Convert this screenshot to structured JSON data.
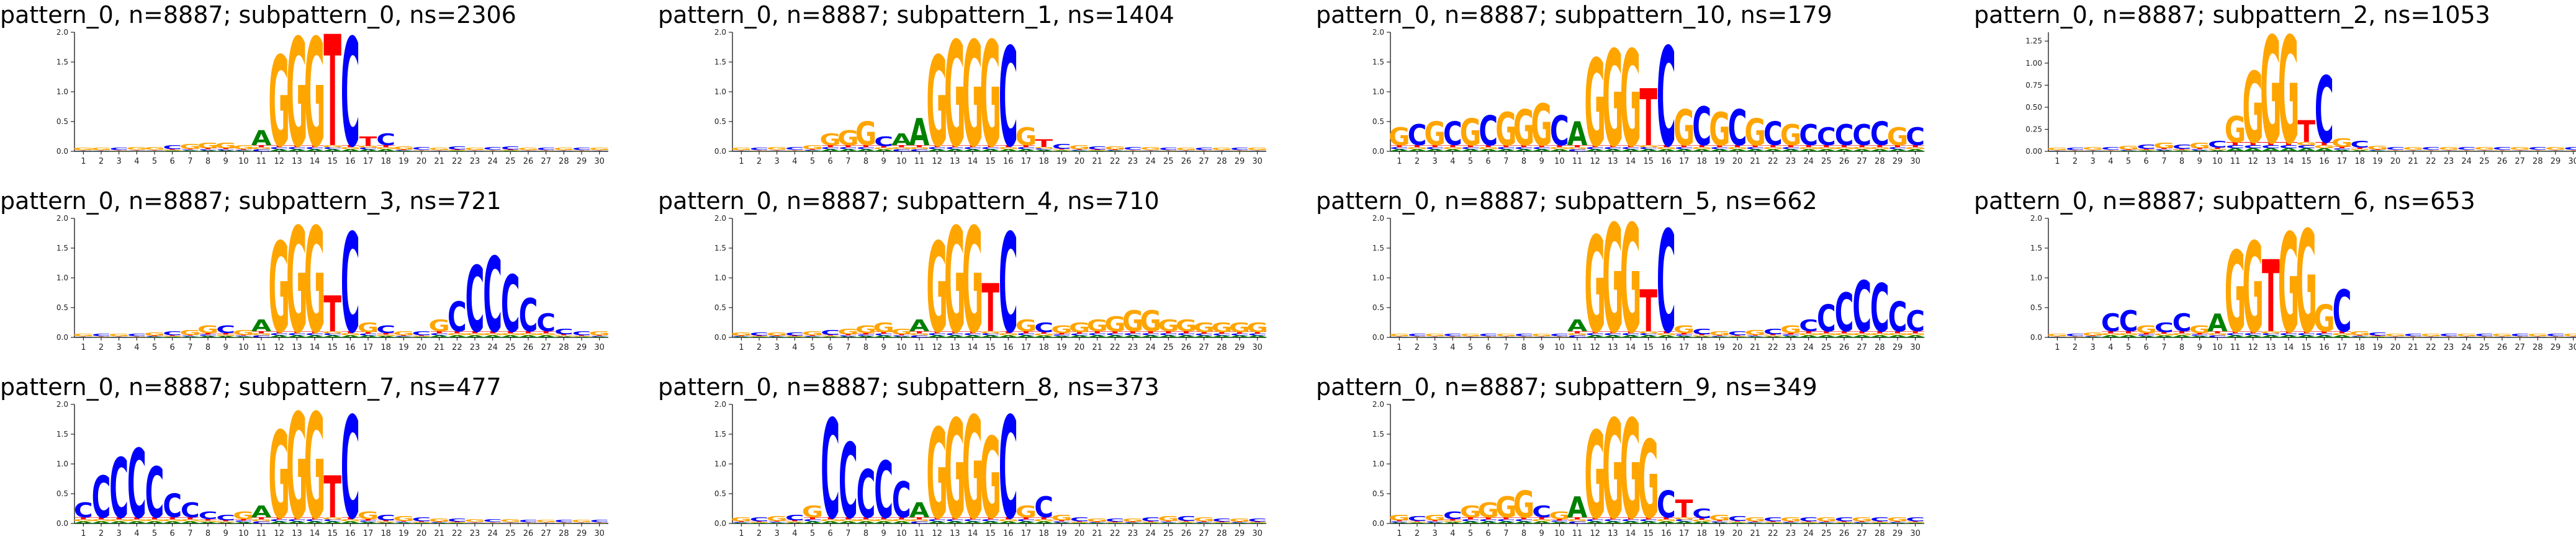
{
  "colors": {
    "A": "#008000",
    "C": "#0000ff",
    "G": "#ffa500",
    "T": "#ff0000"
  },
  "chart_data": [
    {
      "type": "logo",
      "title": "pattern_0, n=8887; subpattern_0, ns=2306",
      "yticks": [
        "0.0",
        "0.5",
        "1.0",
        "1.5",
        "2.0"
      ],
      "ylim": [
        0,
        2.0
      ],
      "x": [
        "1",
        "2",
        "3",
        "4",
        "5",
        "6",
        "7",
        "8",
        "9",
        "10",
        "11",
        "12",
        "13",
        "14",
        "15",
        "16",
        "17",
        "18",
        "19",
        "20",
        "21",
        "22",
        "23",
        "24",
        "25",
        "26",
        "27",
        "28",
        "29",
        "30"
      ],
      "heights": [
        0.06,
        0.06,
        0.06,
        0.07,
        0.07,
        0.1,
        0.12,
        0.15,
        0.15,
        0.1,
        0.35,
        1.6,
        1.9,
        1.9,
        1.95,
        1.9,
        0.25,
        0.3,
        0.08,
        0.07,
        0.06,
        0.08,
        0.06,
        0.07,
        0.08,
        0.06,
        0.06,
        0.06,
        0.06,
        0.06
      ],
      "dominant": [
        "G",
        "G",
        "C",
        "G",
        "G",
        "C",
        "G",
        "G",
        "G",
        "G",
        "A",
        "G",
        "G",
        "G",
        "T",
        "C",
        "T",
        "C",
        "G",
        "C",
        "G",
        "C",
        "G",
        "C",
        "C",
        "G",
        "C",
        "G",
        "C",
        "G"
      ]
    },
    {
      "type": "logo",
      "title": "pattern_0, n=8887; subpattern_1, ns=1404",
      "yticks": [
        "0.0",
        "0.5",
        "1.0",
        "1.5",
        "2.0"
      ],
      "ylim": [
        0,
        2.0
      ],
      "x": [
        "1",
        "2",
        "3",
        "4",
        "5",
        "6",
        "7",
        "8",
        "9",
        "10",
        "11",
        "12",
        "13",
        "14",
        "15",
        "16",
        "17",
        "18",
        "19",
        "20",
        "21",
        "22",
        "23",
        "24",
        "25",
        "26",
        "27",
        "28",
        "29",
        "30"
      ],
      "heights": [
        0.06,
        0.06,
        0.07,
        0.07,
        0.1,
        0.3,
        0.35,
        0.5,
        0.25,
        0.3,
        0.55,
        1.6,
        1.85,
        1.85,
        1.85,
        1.75,
        0.4,
        0.2,
        0.12,
        0.1,
        0.08,
        0.08,
        0.07,
        0.07,
        0.06,
        0.06,
        0.06,
        0.06,
        0.06,
        0.06
      ],
      "dominant": [
        "G",
        "C",
        "G",
        "C",
        "G",
        "G",
        "G",
        "G",
        "C",
        "A",
        "A",
        "G",
        "G",
        "G",
        "G",
        "C",
        "G",
        "T",
        "C",
        "G",
        "C",
        "G",
        "C",
        "G",
        "C",
        "G",
        "C",
        "G",
        "C",
        "G"
      ]
    },
    {
      "type": "logo",
      "title": "pattern_0, n=8887; subpattern_10, ns=179",
      "yticks": [
        "0.0",
        "0.5",
        "1.0",
        "1.5",
        "2.0"
      ],
      "ylim": [
        0,
        2.0
      ],
      "x": [
        "1",
        "2",
        "3",
        "4",
        "5",
        "6",
        "7",
        "8",
        "9",
        "10",
        "11",
        "12",
        "13",
        "14",
        "15",
        "16",
        "17",
        "18",
        "19",
        "20",
        "21",
        "22",
        "23",
        "24",
        "25",
        "26",
        "27",
        "28",
        "29",
        "30"
      ],
      "heights": [
        0.4,
        0.45,
        0.5,
        0.5,
        0.55,
        0.6,
        0.65,
        0.7,
        0.8,
        0.6,
        0.5,
        1.55,
        1.7,
        1.7,
        1.05,
        1.75,
        0.7,
        0.75,
        0.65,
        0.7,
        0.55,
        0.5,
        0.45,
        0.45,
        0.4,
        0.45,
        0.45,
        0.5,
        0.4,
        0.4
      ],
      "dominant": [
        "G",
        "C",
        "G",
        "C",
        "G",
        "C",
        "G",
        "G",
        "G",
        "C",
        "A",
        "G",
        "G",
        "G",
        "T",
        "C",
        "G",
        "C",
        "G",
        "C",
        "G",
        "C",
        "G",
        "C",
        "C",
        "C",
        "C",
        "C",
        "G",
        "C"
      ]
    },
    {
      "type": "logo",
      "title": "pattern_0, n=8887; subpattern_2, ns=1053",
      "yticks": [
        "0.00",
        "0.25",
        "0.50",
        "0.75",
        "1.00",
        "1.25"
      ],
      "ylim": [
        0,
        1.35
      ],
      "x": [
        "1",
        "2",
        "3",
        "4",
        "5",
        "6",
        "7",
        "8",
        "9",
        "10",
        "11",
        "12",
        "13",
        "14",
        "15",
        "16",
        "17",
        "18",
        "19",
        "20",
        "21",
        "22",
        "23",
        "24",
        "25",
        "26",
        "27",
        "28",
        "29",
        "30"
      ],
      "heights": [
        0.04,
        0.04,
        0.05,
        0.05,
        0.06,
        0.08,
        0.1,
        0.08,
        0.1,
        0.12,
        0.4,
        0.9,
        1.3,
        1.3,
        0.35,
        0.85,
        0.15,
        0.12,
        0.06,
        0.05,
        0.05,
        0.05,
        0.05,
        0.05,
        0.05,
        0.05,
        0.05,
        0.05,
        0.05,
        0.05
      ],
      "dominant": [
        "G",
        "C",
        "G",
        "C",
        "G",
        "C",
        "G",
        "C",
        "G",
        "C",
        "G",
        "G",
        "G",
        "G",
        "T",
        "C",
        "G",
        "C",
        "G",
        "C",
        "G",
        "C",
        "G",
        "C",
        "G",
        "C",
        "G",
        "C",
        "G",
        "C"
      ]
    },
    {
      "type": "logo",
      "title": "pattern_0, n=8887; subpattern_3, ns=721",
      "yticks": [
        "0.0",
        "0.5",
        "1.0",
        "1.5",
        "2.0"
      ],
      "ylim": [
        0,
        2.0
      ],
      "x": [
        "1",
        "2",
        "3",
        "4",
        "5",
        "6",
        "7",
        "8",
        "9",
        "10",
        "11",
        "12",
        "13",
        "14",
        "15",
        "16",
        "17",
        "18",
        "19",
        "20",
        "21",
        "22",
        "23",
        "24",
        "25",
        "26",
        "27",
        "28",
        "29",
        "30"
      ],
      "heights": [
        0.06,
        0.06,
        0.06,
        0.06,
        0.08,
        0.1,
        0.12,
        0.2,
        0.2,
        0.12,
        0.3,
        1.6,
        1.85,
        1.85,
        0.7,
        1.75,
        0.25,
        0.2,
        0.1,
        0.1,
        0.3,
        0.6,
        1.2,
        1.35,
        1.05,
        0.65,
        0.4,
        0.15,
        0.1,
        0.1
      ],
      "dominant": [
        "G",
        "C",
        "G",
        "C",
        "G",
        "C",
        "G",
        "G",
        "C",
        "G",
        "A",
        "G",
        "G",
        "G",
        "T",
        "C",
        "G",
        "C",
        "G",
        "C",
        "G",
        "C",
        "C",
        "C",
        "C",
        "C",
        "C",
        "C",
        "C",
        "G"
      ]
    },
    {
      "type": "logo",
      "title": "pattern_0, n=8887; subpattern_4, ns=710",
      "yticks": [
        "0.0",
        "0.5",
        "1.0",
        "1.5",
        "2.0"
      ],
      "ylim": [
        0,
        2.0
      ],
      "x": [
        "1",
        "2",
        "3",
        "4",
        "5",
        "6",
        "7",
        "8",
        "9",
        "10",
        "11",
        "12",
        "13",
        "14",
        "15",
        "16",
        "17",
        "18",
        "19",
        "20",
        "21",
        "22",
        "23",
        "24",
        "25",
        "26",
        "27",
        "28",
        "29",
        "30"
      ],
      "heights": [
        0.08,
        0.08,
        0.08,
        0.08,
        0.1,
        0.12,
        0.15,
        0.2,
        0.25,
        0.15,
        0.3,
        1.6,
        1.85,
        1.85,
        0.9,
        1.75,
        0.3,
        0.25,
        0.2,
        0.25,
        0.3,
        0.35,
        0.45,
        0.45,
        0.3,
        0.3,
        0.25,
        0.25,
        0.25,
        0.25
      ],
      "dominant": [
        "G",
        "C",
        "G",
        "C",
        "G",
        "C",
        "G",
        "G",
        "G",
        "G",
        "A",
        "G",
        "G",
        "G",
        "T",
        "C",
        "G",
        "C",
        "G",
        "G",
        "G",
        "G",
        "G",
        "G",
        "G",
        "G",
        "G",
        "G",
        "G",
        "G"
      ]
    },
    {
      "type": "logo",
      "title": "pattern_0, n=8887; subpattern_5, ns=662",
      "yticks": [
        "0.0",
        "0.5",
        "1.0",
        "1.5",
        "2.0"
      ],
      "ylim": [
        0,
        2.0
      ],
      "x": [
        "1",
        "2",
        "3",
        "4",
        "5",
        "6",
        "7",
        "8",
        "9",
        "10",
        "11",
        "12",
        "13",
        "14",
        "15",
        "16",
        "17",
        "18",
        "19",
        "20",
        "21",
        "22",
        "23",
        "24",
        "25",
        "26",
        "27",
        "28",
        "29",
        "30"
      ],
      "heights": [
        0.06,
        0.06,
        0.06,
        0.06,
        0.06,
        0.06,
        0.06,
        0.06,
        0.06,
        0.06,
        0.3,
        1.7,
        1.9,
        1.9,
        0.8,
        1.8,
        0.2,
        0.15,
        0.1,
        0.1,
        0.12,
        0.15,
        0.2,
        0.3,
        0.55,
        0.75,
        0.95,
        0.9,
        0.6,
        0.45
      ],
      "dominant": [
        "G",
        "C",
        "G",
        "C",
        "G",
        "C",
        "G",
        "C",
        "G",
        "C",
        "A",
        "G",
        "G",
        "G",
        "T",
        "C",
        "G",
        "C",
        "G",
        "C",
        "G",
        "C",
        "G",
        "C",
        "C",
        "C",
        "C",
        "C",
        "C",
        "C"
      ]
    },
    {
      "type": "logo",
      "title": "pattern_0, n=8887; subpattern_6, ns=653",
      "yticks": [
        "0.0",
        "0.5",
        "1.0",
        "1.5",
        "2.0"
      ],
      "ylim": [
        0,
        2.0
      ],
      "x": [
        "1",
        "2",
        "3",
        "4",
        "5",
        "6",
        "7",
        "8",
        "9",
        "10",
        "11",
        "12",
        "13",
        "14",
        "15",
        "16",
        "17",
        "18",
        "19",
        "20",
        "21",
        "22",
        "23",
        "24",
        "25",
        "26",
        "27",
        "28",
        "29",
        "30"
      ],
      "heights": [
        0.06,
        0.06,
        0.08,
        0.4,
        0.45,
        0.2,
        0.25,
        0.4,
        0.2,
        0.4,
        1.45,
        1.6,
        1.3,
        1.75,
        1.8,
        0.55,
        0.8,
        0.1,
        0.08,
        0.06,
        0.06,
        0.06,
        0.06,
        0.06,
        0.06,
        0.06,
        0.06,
        0.06,
        0.06,
        0.06
      ],
      "dominant": [
        "G",
        "C",
        "G",
        "C",
        "C",
        "G",
        "C",
        "C",
        "G",
        "A",
        "G",
        "G",
        "T",
        "G",
        "G",
        "G",
        "C",
        "G",
        "C",
        "G",
        "C",
        "G",
        "C",
        "G",
        "C",
        "G",
        "C",
        "G",
        "C",
        "G"
      ]
    },
    {
      "type": "logo",
      "title": "pattern_0, n=8887; subpattern_7, ns=477",
      "yticks": [
        "0.0",
        "0.5",
        "1.0",
        "1.5",
        "2.0"
      ],
      "ylim": [
        0,
        2.0
      ],
      "x": [
        "1",
        "2",
        "3",
        "4",
        "5",
        "6",
        "7",
        "8",
        "9",
        "10",
        "11",
        "12",
        "13",
        "14",
        "15",
        "16",
        "17",
        "18",
        "19",
        "20",
        "21",
        "22",
        "23",
        "24",
        "25",
        "26",
        "27",
        "28",
        "29",
        "30"
      ],
      "heights": [
        0.35,
        0.8,
        1.1,
        1.25,
        0.95,
        0.5,
        0.35,
        0.2,
        0.15,
        0.2,
        0.3,
        1.55,
        1.85,
        1.85,
        0.8,
        1.8,
        0.2,
        0.15,
        0.12,
        0.1,
        0.08,
        0.08,
        0.07,
        0.07,
        0.07,
        0.06,
        0.06,
        0.06,
        0.06,
        0.06
      ],
      "dominant": [
        "C",
        "C",
        "C",
        "C",
        "C",
        "C",
        "C",
        "C",
        "C",
        "G",
        "A",
        "G",
        "G",
        "G",
        "T",
        "C",
        "G",
        "C",
        "G",
        "C",
        "G",
        "C",
        "G",
        "C",
        "G",
        "C",
        "G",
        "C",
        "G",
        "C"
      ]
    },
    {
      "type": "logo",
      "title": "pattern_0, n=8887; subpattern_8, ns=373",
      "yticks": [
        "0.0",
        "0.5",
        "1.0",
        "1.5",
        "2.0"
      ],
      "ylim": [
        0,
        2.0
      ],
      "x": [
        "1",
        "2",
        "3",
        "4",
        "5",
        "6",
        "7",
        "8",
        "9",
        "10",
        "11",
        "12",
        "13",
        "14",
        "15",
        "16",
        "17",
        "18",
        "19",
        "20",
        "21",
        "22",
        "23",
        "24",
        "25",
        "26",
        "27",
        "28",
        "29",
        "30"
      ],
      "heights": [
        0.1,
        0.1,
        0.12,
        0.15,
        0.3,
        1.75,
        1.35,
        0.9,
        1.05,
        0.7,
        0.35,
        1.6,
        1.75,
        1.8,
        1.45,
        1.8,
        0.3,
        0.45,
        0.15,
        0.1,
        0.08,
        0.08,
        0.08,
        0.1,
        0.12,
        0.12,
        0.1,
        0.08,
        0.08,
        0.08
      ],
      "dominant": [
        "G",
        "C",
        "G",
        "C",
        "G",
        "C",
        "C",
        "C",
        "C",
        "C",
        "A",
        "G",
        "G",
        "G",
        "G",
        "C",
        "G",
        "C",
        "G",
        "C",
        "G",
        "C",
        "G",
        "C",
        "G",
        "C",
        "G",
        "C",
        "G",
        "C"
      ]
    },
    {
      "type": "logo",
      "title": "pattern_0, n=8887; subpattern_9, ns=349",
      "yticks": [
        "0.0",
        "0.5",
        "1.0",
        "1.5",
        "2.0"
      ],
      "ylim": [
        0,
        2.0
      ],
      "x": [
        "1",
        "2",
        "3",
        "4",
        "5",
        "6",
        "7",
        "8",
        "9",
        "10",
        "11",
        "12",
        "13",
        "14",
        "15",
        "16",
        "17",
        "18",
        "19",
        "20",
        "21",
        "22",
        "23",
        "24",
        "25",
        "26",
        "27",
        "28",
        "29",
        "30"
      ],
      "heights": [
        0.15,
        0.12,
        0.15,
        0.2,
        0.3,
        0.35,
        0.45,
        0.55,
        0.3,
        0.2,
        0.45,
        1.55,
        1.75,
        1.75,
        1.4,
        0.55,
        0.4,
        0.25,
        0.15,
        0.12,
        0.1,
        0.1,
        0.1,
        0.1,
        0.1,
        0.1,
        0.1,
        0.1,
        0.1,
        0.1
      ],
      "dominant": [
        "G",
        "C",
        "G",
        "C",
        "G",
        "G",
        "G",
        "G",
        "C",
        "G",
        "A",
        "G",
        "G",
        "G",
        "G",
        "C",
        "T",
        "C",
        "G",
        "C",
        "G",
        "C",
        "G",
        "C",
        "G",
        "C",
        "G",
        "C",
        "G",
        "C"
      ]
    }
  ]
}
